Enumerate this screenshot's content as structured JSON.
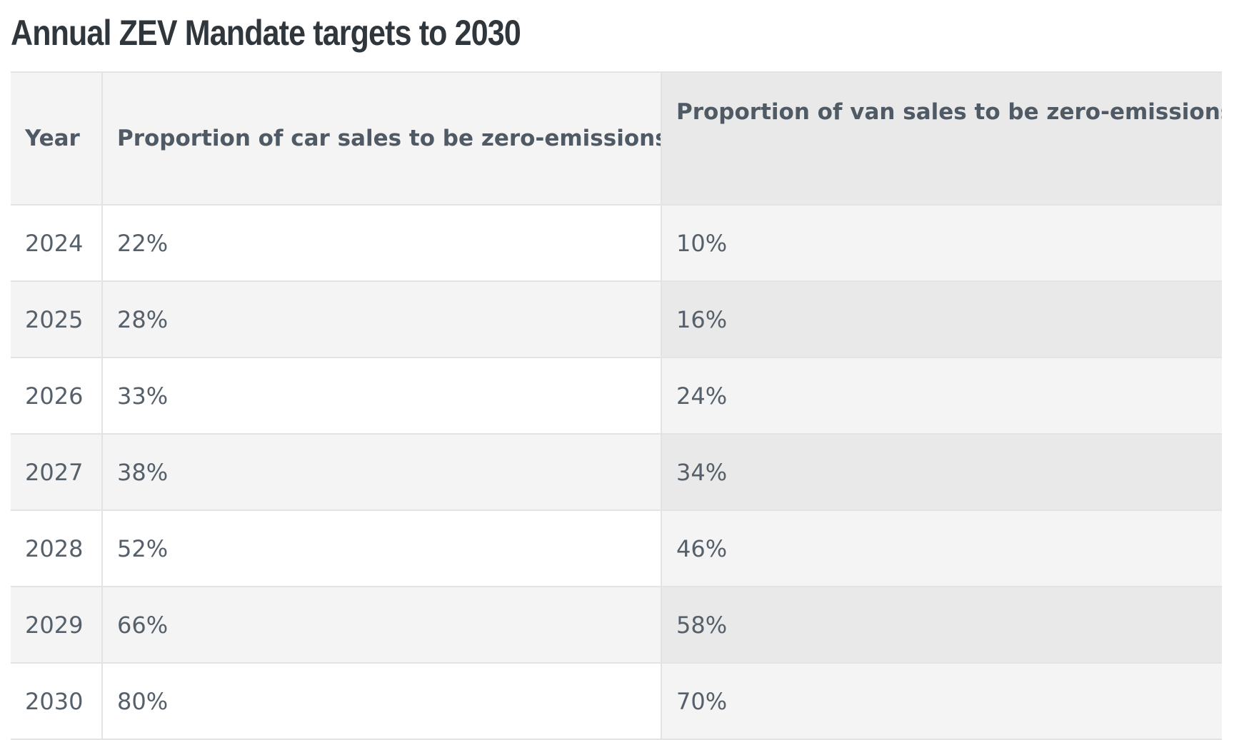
{
  "title": "Annual ZEV Mandate targets to 2030",
  "table": {
    "headers": {
      "year": "Year",
      "car": "Proportion of car sales to be zero-emissions",
      "van": "Proportion of van sales to be zero-emissions"
    },
    "rows": [
      {
        "year": "2024",
        "car": "22%",
        "van": "10%"
      },
      {
        "year": "2025",
        "car": "28%",
        "van": "16%"
      },
      {
        "year": "2026",
        "car": "33%",
        "van": "24%"
      },
      {
        "year": "2027",
        "car": "38%",
        "van": "34%"
      },
      {
        "year": "2028",
        "car": "52%",
        "van": "46%"
      },
      {
        "year": "2029",
        "car": "66%",
        "van": "58%"
      },
      {
        "year": "2030",
        "car": "80%",
        "van": "70%"
      }
    ]
  }
}
